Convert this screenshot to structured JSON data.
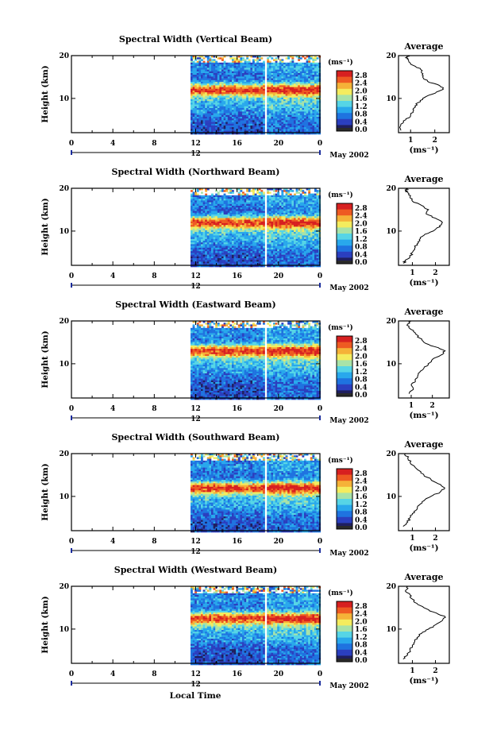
{
  "figure": {
    "xlabel": "Local Time",
    "date_label": "May 2002",
    "ylabel": "Height (km)",
    "unit": "(ms⁻¹)",
    "average_title": "Average",
    "colorbar_ticks": [
      "2.8",
      "2.4",
      "2.0",
      "1.6",
      "1.2",
      "0.8",
      "0.4",
      "0.0"
    ],
    "colorscale": [
      "#1f1f5e",
      "#2b3fbf",
      "#1f73e0",
      "#29a8ec",
      "#56d5e6",
      "#a8e3a8",
      "#f4ec5e",
      "#f5b238",
      "#ee5a22",
      "#d72020"
    ],
    "time_ticks": [
      "0",
      "4",
      "8",
      "12",
      "16",
      "20",
      "0"
    ],
    "day_label": "12",
    "height_ticks": [
      "20",
      "10"
    ]
  },
  "chart_data": [
    {
      "type": "heatmap",
      "title": "Spectral Width (Vertical Beam)",
      "xlabel": "Local Time",
      "ylabel": "Height (km)",
      "xlim": [
        0,
        24
      ],
      "ylim": [
        2,
        20
      ],
      "clim": [
        0.0,
        2.8
      ],
      "data_start_hour": 11.5,
      "gap_hour": 18.8,
      "peak_height_km": 12,
      "average": {
        "xticks": [
          "1",
          "2"
        ],
        "xlim": [
          0.5,
          2.6
        ],
        "ylim": [
          2,
          20
        ],
        "xlabel": "(ms⁻¹)",
        "profile": [
          [
            2.5,
            0.6
          ],
          [
            4,
            0.6
          ],
          [
            5,
            0.8
          ],
          [
            6,
            1.0
          ],
          [
            7,
            1.1
          ],
          [
            8,
            1.2
          ],
          [
            9,
            1.3
          ],
          [
            10,
            1.5
          ],
          [
            11,
            1.9
          ],
          [
            12,
            2.3
          ],
          [
            12.5,
            2.35
          ],
          [
            13,
            2.2
          ],
          [
            14,
            1.7
          ],
          [
            15,
            1.5
          ],
          [
            16,
            1.45
          ],
          [
            17,
            1.4
          ],
          [
            18,
            1.0
          ],
          [
            19,
            0.9
          ],
          [
            19.5,
            0.8
          ],
          [
            20,
            0.9
          ]
        ]
      }
    },
    {
      "type": "heatmap",
      "title": "Spectral Width (Northward Beam)",
      "xlabel": "Local Time",
      "ylabel": "Height (km)",
      "xlim": [
        0,
        24
      ],
      "ylim": [
        2,
        20
      ],
      "clim": [
        0.0,
        2.8
      ],
      "data_start_hour": 11.5,
      "gap_hour": 18.8,
      "peak_height_km": 12,
      "average": {
        "xticks": [
          "1",
          "2"
        ],
        "xlim": [
          0.4,
          2.6
        ],
        "ylim": [
          2,
          20
        ],
        "xlabel": "(ms⁻¹)",
        "profile": [
          [
            2.5,
            0.6
          ],
          [
            3,
            0.7
          ],
          [
            4,
            0.9
          ],
          [
            5,
            1.0
          ],
          [
            6,
            1.1
          ],
          [
            7,
            1.2
          ],
          [
            8,
            1.3
          ],
          [
            9,
            1.5
          ],
          [
            10,
            1.9
          ],
          [
            11,
            2.2
          ],
          [
            12,
            2.3
          ],
          [
            13,
            2.0
          ],
          [
            14,
            1.6
          ],
          [
            15,
            1.7
          ],
          [
            16,
            1.4
          ],
          [
            17,
            1.0
          ],
          [
            18,
            0.9
          ],
          [
            19,
            0.8
          ],
          [
            19.5,
            0.7
          ],
          [
            20,
            0.8
          ]
        ]
      }
    },
    {
      "type": "heatmap",
      "title": "Spectral Width (Eastward Beam)",
      "xlabel": "Local Time",
      "ylabel": "Height (km)",
      "xlim": [
        0,
        24
      ],
      "ylim": [
        2,
        20
      ],
      "clim": [
        0.0,
        2.8
      ],
      "data_start_hour": 11.5,
      "gap_hour": 18.8,
      "peak_height_km": 13,
      "average": {
        "xticks": [
          "1",
          "2"
        ],
        "xlim": [
          0.4,
          2.8
        ],
        "ylim": [
          2,
          20
        ],
        "xlabel": "(ms⁻¹)",
        "profile": [
          [
            3,
            0.9
          ],
          [
            4,
            1.1
          ],
          [
            5,
            1.0
          ],
          [
            6,
            1.2
          ],
          [
            7,
            1.3
          ],
          [
            8,
            1.4
          ],
          [
            9,
            1.6
          ],
          [
            10,
            1.8
          ],
          [
            11,
            2.0
          ],
          [
            12,
            2.4
          ],
          [
            13,
            2.6
          ],
          [
            14,
            2.1
          ],
          [
            15,
            1.6
          ],
          [
            16,
            1.4
          ],
          [
            17,
            1.2
          ],
          [
            18,
            1.0
          ],
          [
            19,
            0.8
          ],
          [
            20,
            1.0
          ]
        ]
      }
    },
    {
      "type": "heatmap",
      "title": "Spectral Width (Southward Beam)",
      "xlabel": "Local Time",
      "ylabel": "Height (km)",
      "xlim": [
        0,
        24
      ],
      "ylim": [
        2,
        20
      ],
      "clim": [
        0.0,
        2.8
      ],
      "data_start_hour": 11.5,
      "gap_hour": 18.8,
      "peak_height_km": 12,
      "average": {
        "xticks": [
          "1",
          "2"
        ],
        "xlim": [
          0.4,
          2.6
        ],
        "ylim": [
          2,
          20
        ],
        "xlabel": "(ms⁻¹)",
        "profile": [
          [
            3,
            0.6
          ],
          [
            4,
            0.8
          ],
          [
            5,
            0.9
          ],
          [
            6,
            1.0
          ],
          [
            7,
            1.2
          ],
          [
            8,
            1.3
          ],
          [
            9,
            1.5
          ],
          [
            10,
            1.8
          ],
          [
            11,
            2.2
          ],
          [
            12,
            2.4
          ],
          [
            13,
            2.1
          ],
          [
            14,
            1.8
          ],
          [
            15,
            1.5
          ],
          [
            16,
            1.3
          ],
          [
            17,
            1.1
          ],
          [
            18,
            0.9
          ],
          [
            19,
            0.8
          ],
          [
            20,
            0.7
          ]
        ]
      }
    },
    {
      "type": "heatmap",
      "title": "Spectral Width (Westward Beam)",
      "xlabel": "Local Time",
      "ylabel": "Height (km)",
      "xlim": [
        0,
        24
      ],
      "ylim": [
        2,
        20
      ],
      "clim": [
        0.0,
        2.8
      ],
      "data_start_hour": 11.5,
      "gap_hour": 18.8,
      "peak_height_km": 12.5,
      "average": {
        "xticks": [
          "1",
          "2"
        ],
        "xlim": [
          0.4,
          2.6
        ],
        "ylim": [
          2,
          20
        ],
        "xlabel": "(ms⁻¹)",
        "profile": [
          [
            3,
            0.6
          ],
          [
            4,
            0.8
          ],
          [
            5,
            0.9
          ],
          [
            6,
            1.0
          ],
          [
            7,
            1.1
          ],
          [
            8,
            1.2
          ],
          [
            9,
            1.4
          ],
          [
            10,
            1.7
          ],
          [
            11,
            2.0
          ],
          [
            12,
            2.3
          ],
          [
            13,
            2.4
          ],
          [
            14,
            1.9
          ],
          [
            15,
            1.5
          ],
          [
            16,
            1.2
          ],
          [
            17,
            1.0
          ],
          [
            18,
            0.9
          ],
          [
            19,
            0.7
          ],
          [
            20,
            0.8
          ]
        ]
      }
    }
  ]
}
